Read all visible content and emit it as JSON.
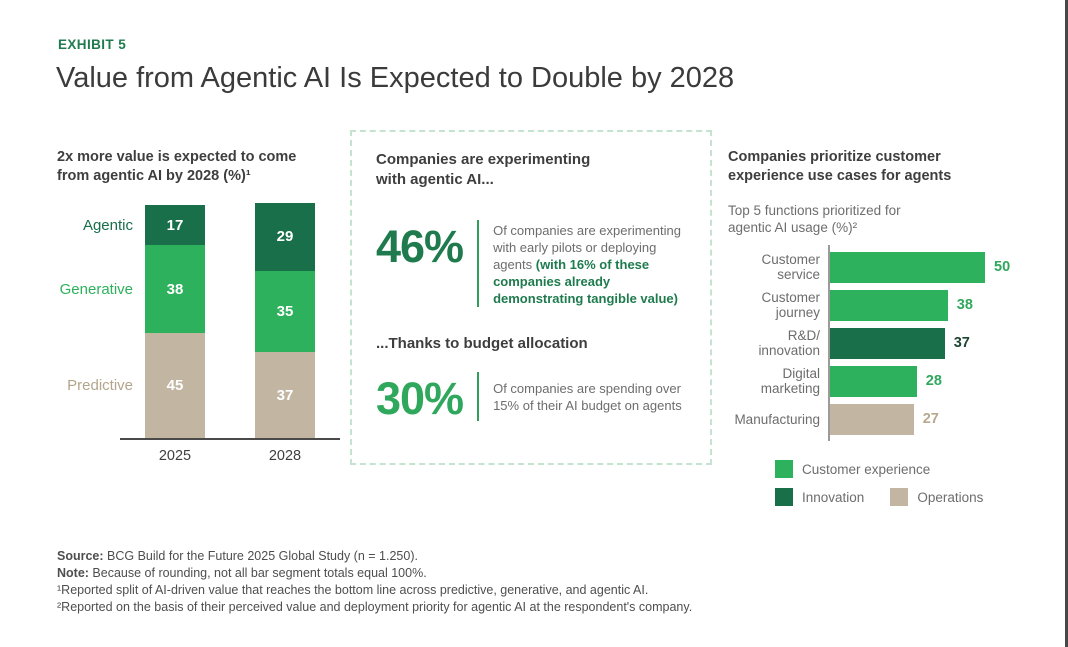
{
  "exhibit_label": "EXHIBIT 5",
  "title": "Value from Agentic AI Is Expected to Double by 2028",
  "colors": {
    "light_green": "#2EB15C",
    "dark_green": "#186F4A",
    "tan": "#C2B6A3",
    "accent_green": "#1F7B4D",
    "bright_green": "#2FA75C",
    "dashed_border": "#C5E3D1",
    "stat_divider": "#2E9E59"
  },
  "chart_data": [
    {
      "type": "bar",
      "subtype": "stacked-vertical",
      "title": "2x more value is expected to come\nfrom agentic AI by 2028 (%)¹",
      "categories": [
        "2025",
        "2028"
      ],
      "series": [
        {
          "name": "Agentic",
          "values": [
            17,
            29
          ],
          "color": "#186F4A",
          "label_color": "#186F4A"
        },
        {
          "name": "Generative",
          "values": [
            38,
            35
          ],
          "color": "#2EB15C",
          "label_color": "#2EB15C"
        },
        {
          "name": "Predictive",
          "values": [
            45,
            37
          ],
          "color": "#C2B6A3",
          "label_color": "#B3A58C"
        }
      ],
      "ylim": [
        0,
        101
      ],
      "value_labels": "inside-white",
      "grid": false,
      "legend_position": "left-of-bars"
    },
    {
      "type": "bar",
      "subtype": "horizontal",
      "title": "Companies prioritize customer\nexperience use cases for agents",
      "subtitle": "Top 5 functions prioritized for\nagentic AI usage (%)²",
      "categories": [
        "Customer service",
        "Customer journey",
        "R&D/innovation",
        "Digital marketing",
        "Manufacturing"
      ],
      "values": [
        50,
        38,
        37,
        28,
        27
      ],
      "xlim": [
        0,
        55
      ],
      "grid": false,
      "rows": [
        {
          "label_lines": [
            "Customer",
            "service"
          ],
          "value": 50,
          "color": "#2EB15C",
          "value_color": "#2FA75C"
        },
        {
          "label_lines": [
            "Customer",
            "journey"
          ],
          "value": 38,
          "color": "#2EB15C",
          "value_color": "#2FA75C"
        },
        {
          "label_lines": [
            "R&D/",
            "innovation"
          ],
          "value": 37,
          "color": "#186F4A",
          "value_color": "#1E4634"
        },
        {
          "label_lines": [
            "Digital",
            "marketing"
          ],
          "value": 28,
          "color": "#2EB15C",
          "value_color": "#2FA75C"
        },
        {
          "label_lines": [
            "Manufacturing"
          ],
          "value": 27,
          "color": "#C2B6A3",
          "value_color": "#B7A88E"
        }
      ],
      "legend": [
        {
          "label": "Customer experience",
          "color": "#2EB15C"
        },
        {
          "label": "Innovation",
          "color": "#186F4A"
        },
        {
          "label": "Operations",
          "color": "#C2B6A3"
        }
      ],
      "legend_rows": [
        [
          0
        ],
        [
          1,
          2
        ]
      ],
      "legend_position": "bottom"
    }
  ],
  "middle_panel": {
    "heading": "Companies are experimenting\nwith agentic AI...",
    "stat1": {
      "value": "46%",
      "color": "#1F7B4D",
      "text_plain": "Of companies are experimenting with early pilots or deploying agents ",
      "text_bold": "(with 16% of these companies already demonstrating tangible value)",
      "bold_color": "#1F7B4D"
    },
    "subheading": "...Thanks to budget allocation",
    "stat2": {
      "value": "30%",
      "color": "#2FA75C",
      "text": "Of companies are spending over 15% of their AI budget on agents"
    }
  },
  "footer": {
    "lines": [
      {
        "bold": "Source:",
        "text": " BCG Build for the Future 2025 Global Study (n = 1.250)."
      },
      {
        "bold": "Note:",
        "text": " Because of rounding, not all bar segment totals equal 100%."
      },
      {
        "bold": "",
        "text": "¹Reported split of AI-driven value that reaches the bottom line across predictive, generative, and agentic AI."
      },
      {
        "bold": "",
        "text": "²Reported on the basis of their perceived value and deployment priority for agentic AI at the respondent's company."
      }
    ]
  }
}
